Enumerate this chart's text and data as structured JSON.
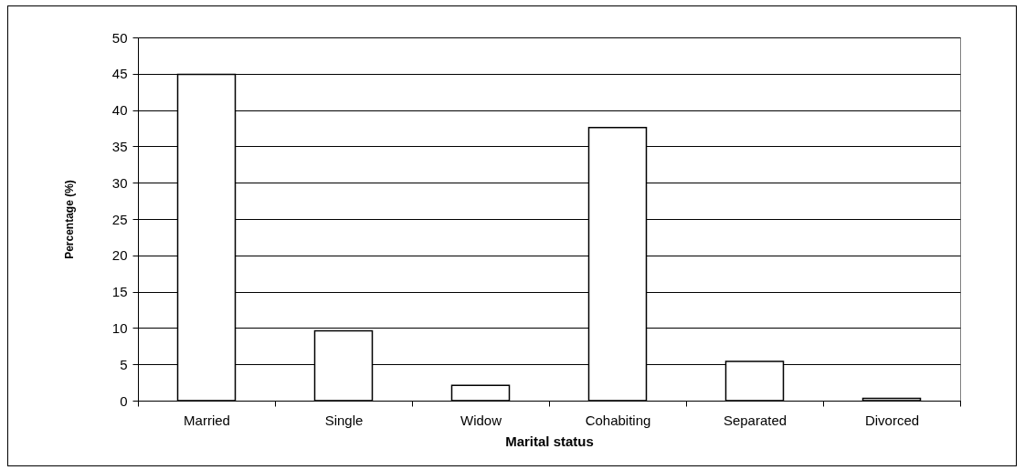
{
  "chart_data": {
    "type": "bar",
    "xlabel": "Marital status",
    "ylabel": "Percentage (%)",
    "categories": [
      "Married",
      "Single",
      "Widow",
      "Cohabiting",
      "Separated",
      "Divorced"
    ],
    "values": [
      44.9,
      9.6,
      2.1,
      37.6,
      5.4,
      0.3
    ],
    "color": "#ffffff",
    "ylim": [
      0,
      50
    ],
    "yticks": [
      0,
      5,
      10,
      15,
      20,
      25,
      30,
      35,
      40,
      45,
      50
    ],
    "grid": "y"
  }
}
